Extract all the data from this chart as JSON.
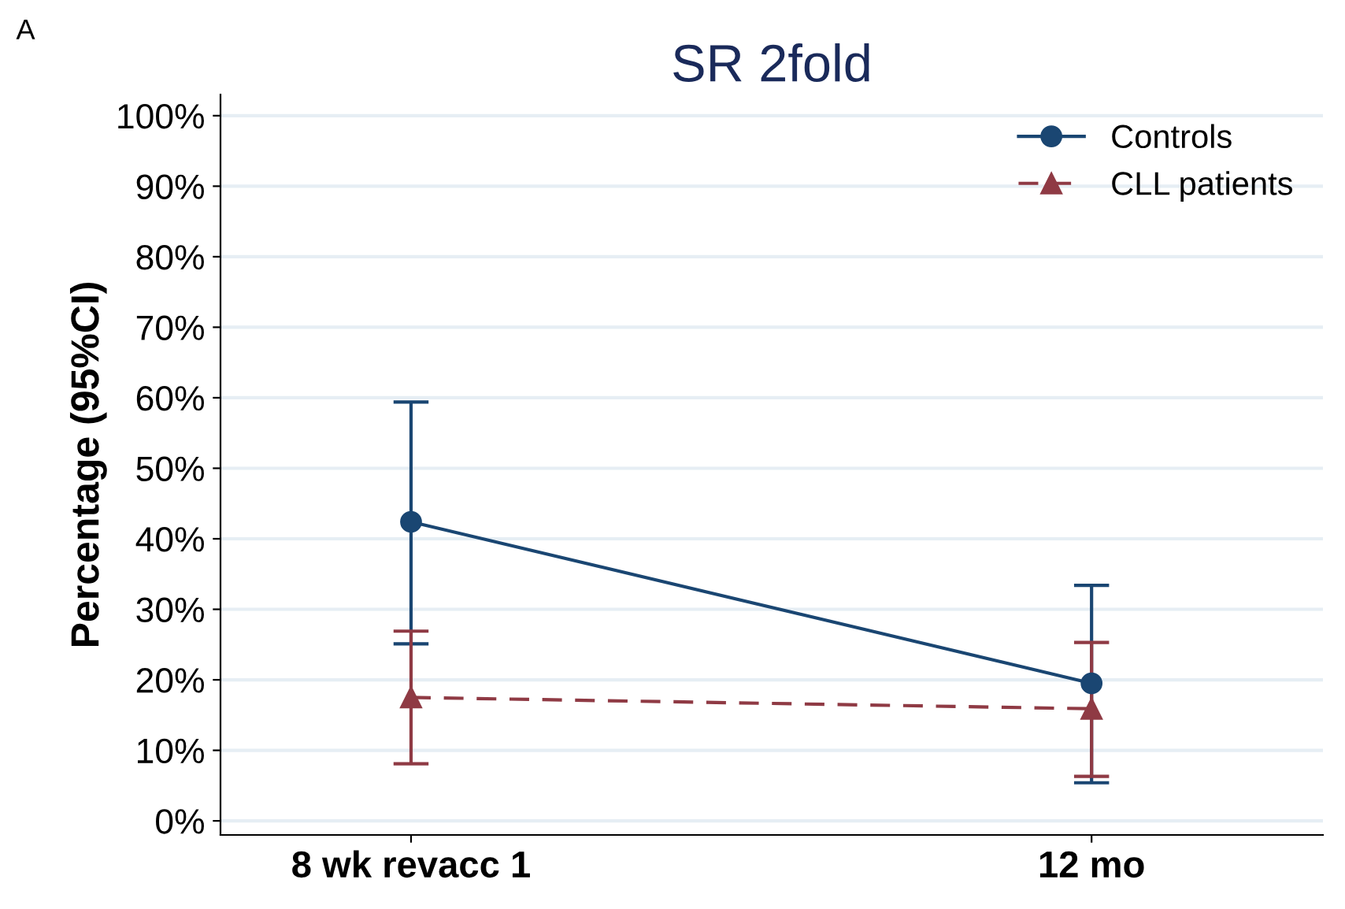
{
  "chart_data": {
    "type": "line",
    "title": "SR 2fold",
    "ylabel": "Percentage (95%CI)",
    "annotations": [
      "A"
    ],
    "categories": [
      "8 wk revacc 1",
      "12 mo"
    ],
    "series": [
      {
        "name": "Controls",
        "color": "#1a4672",
        "values": [
          42.4,
          19.5
        ],
        "errors": [
          [
            25.1,
            59.4
          ],
          [
            5.4,
            33.4
          ]
        ],
        "marker": "circle",
        "line_style": "solid"
      },
      {
        "name": "CLL patients",
        "color": "#8f3a44",
        "values": [
          17.5,
          15.9
        ],
        "errors": [
          [
            8.1,
            26.9
          ],
          [
            6.3,
            25.3
          ]
        ],
        "marker": "triangle",
        "line_style": "dashed"
      }
    ],
    "ylim": [
      -2,
      103
    ],
    "yticks": [
      {
        "value": 0,
        "label": "0%"
      },
      {
        "value": 10,
        "label": "10%"
      },
      {
        "value": 20,
        "label": "20%"
      },
      {
        "value": 30,
        "label": "30%"
      },
      {
        "value": 40,
        "label": "40%"
      },
      {
        "value": 50,
        "label": "50%"
      },
      {
        "value": 60,
        "label": "60%"
      },
      {
        "value": 70,
        "label": "70%"
      },
      {
        "value": 80,
        "label": "80%"
      },
      {
        "value": 90,
        "label": "90%"
      },
      {
        "value": 100,
        "label": "100%"
      }
    ],
    "grid": "y",
    "legend": "top right"
  }
}
